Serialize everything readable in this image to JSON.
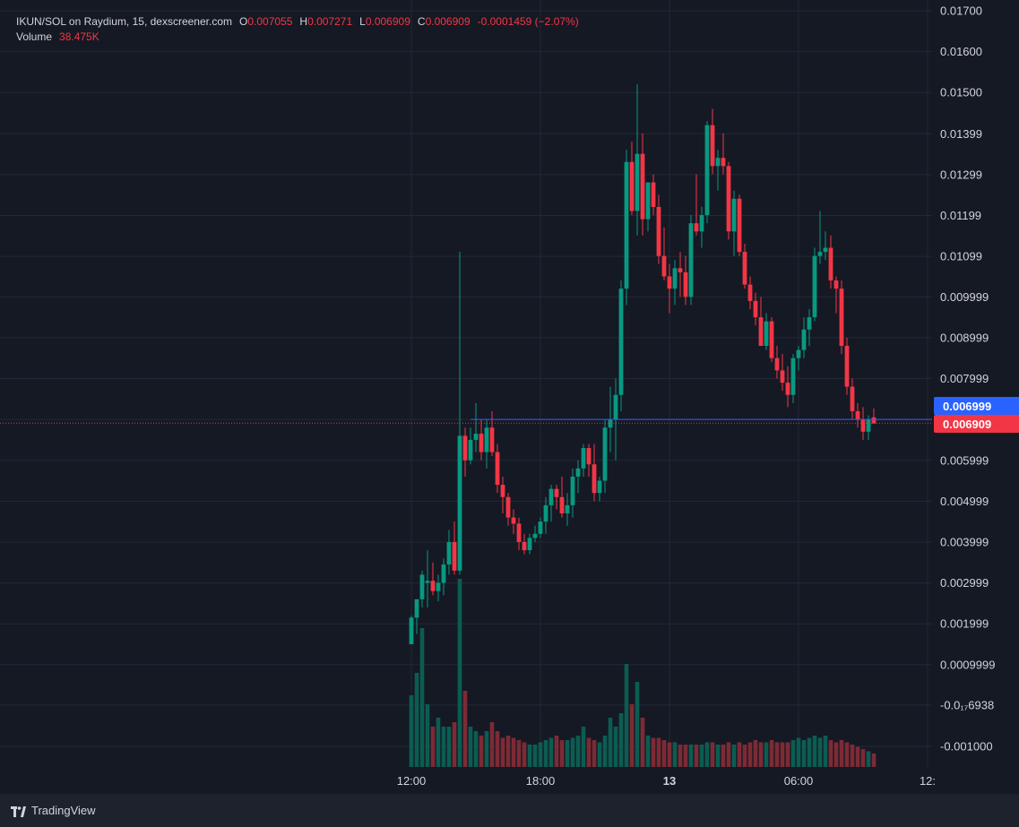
{
  "legend": {
    "symbol": "IKUN/SOL on Raydium, 15, dexscreener.com",
    "o_label": "O",
    "o_value": "0.007055",
    "h_label": "H",
    "h_value": "0.007271",
    "l_label": "L",
    "l_value": "0.006909",
    "c_label": "C",
    "c_value": "0.006909",
    "change": "-0.0001459 (−2.07%)",
    "volume_label": "Volume",
    "volume_value": "38.475K"
  },
  "price_labels": {
    "blue": "0.006999",
    "red": "0.006909"
  },
  "footer": {
    "brand": "TradingView"
  },
  "colors": {
    "background": "#151924",
    "grid": "#242836",
    "up": "#089981",
    "down": "#f23645",
    "blue_line": "#2962ff",
    "axis_text": "#d1d4dc"
  },
  "chart_data": {
    "type": "candlestick",
    "interval": "15",
    "y_ticks": [
      "0.01700",
      "0.01600",
      "0.01500",
      "0.01399",
      "0.01299",
      "0.01199",
      "0.01099",
      "0.009999",
      "0.008999",
      "0.007999",
      "0.006999",
      "0.005999",
      "0.004999",
      "0.003999",
      "0.002999",
      "0.001999",
      "0.0009999",
      "-0.0₁₇6938",
      "-0.001000"
    ],
    "y_tick_values": [
      0.017,
      0.016,
      0.015,
      0.01399,
      0.01299,
      0.01199,
      0.01099,
      0.009999,
      0.008999,
      0.007999,
      0.006999,
      0.005999,
      0.004999,
      0.003999,
      0.002999,
      0.001999,
      0.0009999,
      1e-05,
      -0.001
    ],
    "ylim": [
      -0.0015,
      0.0172
    ],
    "x_ticks": [
      "12:00",
      "18:00",
      "13",
      "06:00",
      "12:"
    ],
    "x_tick_index": [
      0,
      24,
      48,
      72,
      96
    ],
    "candles": [
      [
        0.0015,
        0.0022,
        0.0015,
        0.00215
      ],
      [
        0.00215,
        0.0026,
        0.00175,
        0.0026
      ],
      [
        0.0026,
        0.0033,
        0.0024,
        0.0032
      ],
      [
        0.003,
        0.0038,
        0.0024,
        0.00305
      ],
      [
        0.00305,
        0.0035,
        0.0027,
        0.0028
      ],
      [
        0.0028,
        0.0032,
        0.00255,
        0.003
      ],
      [
        0.003,
        0.0036,
        0.0027,
        0.00345
      ],
      [
        0.00345,
        0.0043,
        0.0032,
        0.004
      ],
      [
        0.004,
        0.0045,
        0.0032,
        0.0033
      ],
      [
        0.0033,
        0.0111,
        0.0032,
        0.0066
      ],
      [
        0.0066,
        0.0068,
        0.0056,
        0.006
      ],
      [
        0.006,
        0.0068,
        0.0059,
        0.0065
      ],
      [
        0.0065,
        0.0074,
        0.0062,
        0.00665
      ],
      [
        0.00665,
        0.007,
        0.006,
        0.0062
      ],
      [
        0.0062,
        0.007,
        0.0058,
        0.0068
      ],
      [
        0.0068,
        0.0072,
        0.0061,
        0.0062
      ],
      [
        0.0062,
        0.0064,
        0.0052,
        0.0054
      ],
      [
        0.0054,
        0.0056,
        0.0047,
        0.0051
      ],
      [
        0.0051,
        0.0052,
        0.0044,
        0.0046
      ],
      [
        0.0046,
        0.0048,
        0.0042,
        0.00445
      ],
      [
        0.00445,
        0.0046,
        0.0038,
        0.004
      ],
      [
        0.004,
        0.0042,
        0.0037,
        0.0038
      ],
      [
        0.0038,
        0.0042,
        0.0037,
        0.0041
      ],
      [
        0.0041,
        0.0044,
        0.004,
        0.0042
      ],
      [
        0.0042,
        0.0046,
        0.0041,
        0.0045
      ],
      [
        0.0045,
        0.0051,
        0.0042,
        0.0049
      ],
      [
        0.0049,
        0.0054,
        0.0045,
        0.0053
      ],
      [
        0.0053,
        0.0054,
        0.0048,
        0.0051
      ],
      [
        0.0051,
        0.0056,
        0.0046,
        0.0047
      ],
      [
        0.0047,
        0.0052,
        0.0044,
        0.0049
      ],
      [
        0.0049,
        0.0058,
        0.0046,
        0.0056
      ],
      [
        0.0056,
        0.006,
        0.0052,
        0.0058
      ],
      [
        0.0058,
        0.0064,
        0.0056,
        0.0063
      ],
      [
        0.0063,
        0.0064,
        0.0056,
        0.0059
      ],
      [
        0.0059,
        0.0064,
        0.005,
        0.0052
      ],
      [
        0.0052,
        0.0056,
        0.005,
        0.0055
      ],
      [
        0.0055,
        0.007,
        0.0052,
        0.0068
      ],
      [
        0.0068,
        0.0078,
        0.0062,
        0.007
      ],
      [
        0.007,
        0.008,
        0.006,
        0.0076
      ],
      [
        0.0076,
        0.0104,
        0.0072,
        0.0102
      ],
      [
        0.0102,
        0.0136,
        0.0098,
        0.0133
      ],
      [
        0.0133,
        0.0138,
        0.012,
        0.0121
      ],
      [
        0.0121,
        0.0152,
        0.0115,
        0.0135
      ],
      [
        0.0135,
        0.014,
        0.0115,
        0.0119
      ],
      [
        0.0119,
        0.0127,
        0.0116,
        0.0128
      ],
      [
        0.0128,
        0.013,
        0.012,
        0.0122
      ],
      [
        0.0122,
        0.0125,
        0.0108,
        0.011
      ],
      [
        0.011,
        0.0117,
        0.0104,
        0.0105
      ],
      [
        0.0105,
        0.0108,
        0.0096,
        0.0102
      ],
      [
        0.0102,
        0.0109,
        0.0098,
        0.0107
      ],
      [
        0.0107,
        0.0111,
        0.01,
        0.0106
      ],
      [
        0.0106,
        0.011,
        0.0098,
        0.01
      ],
      [
        0.01,
        0.012,
        0.0098,
        0.0118
      ],
      [
        0.0118,
        0.013,
        0.0115,
        0.0116
      ],
      [
        0.0116,
        0.0122,
        0.0112,
        0.012
      ],
      [
        0.012,
        0.0143,
        0.0118,
        0.0142
      ],
      [
        0.0142,
        0.0146,
        0.013,
        0.0132
      ],
      [
        0.0132,
        0.0136,
        0.0126,
        0.0134
      ],
      [
        0.0134,
        0.014,
        0.013,
        0.0132
      ],
      [
        0.0132,
        0.0133,
        0.0114,
        0.0116
      ],
      [
        0.0116,
        0.0126,
        0.011,
        0.0124
      ],
      [
        0.0124,
        0.0125,
        0.011,
        0.0111
      ],
      [
        0.0111,
        0.0113,
        0.0102,
        0.0103
      ],
      [
        0.0103,
        0.0105,
        0.0097,
        0.0099
      ],
      [
        0.0099,
        0.0101,
        0.0093,
        0.0095
      ],
      [
        0.0095,
        0.01,
        0.0088,
        0.0088
      ],
      [
        0.0088,
        0.0096,
        0.0087,
        0.0094
      ],
      [
        0.0094,
        0.0095,
        0.0084,
        0.0085
      ],
      [
        0.0085,
        0.0088,
        0.008,
        0.0082
      ],
      [
        0.0082,
        0.0086,
        0.0077,
        0.0079
      ],
      [
        0.0079,
        0.0083,
        0.0073,
        0.0076
      ],
      [
        0.0076,
        0.0086,
        0.0074,
        0.0085
      ],
      [
        0.0085,
        0.0088,
        0.0082,
        0.0087
      ],
      [
        0.0087,
        0.0095,
        0.0085,
        0.0092
      ],
      [
        0.0092,
        0.0097,
        0.0088,
        0.0095
      ],
      [
        0.0095,
        0.0112,
        0.0094,
        0.011
      ],
      [
        0.011,
        0.0121,
        0.0108,
        0.0111
      ],
      [
        0.0111,
        0.0116,
        0.0109,
        0.0112
      ],
      [
        0.0112,
        0.0115,
        0.0102,
        0.0104
      ],
      [
        0.0104,
        0.0105,
        0.0096,
        0.0102
      ],
      [
        0.0102,
        0.0104,
        0.0086,
        0.0088
      ],
      [
        0.0088,
        0.009,
        0.0076,
        0.0078
      ],
      [
        0.0078,
        0.008,
        0.007,
        0.0072
      ],
      [
        0.0072,
        0.0074,
        0.0068,
        0.007
      ],
      [
        0.007,
        0.0073,
        0.0065,
        0.0067
      ],
      [
        0.0067,
        0.0071,
        0.0065,
        0.007
      ],
      [
        0.00705,
        0.00727,
        0.0069,
        0.0069
      ]
    ],
    "volume": [
      1600,
      2100,
      3100,
      1400,
      900,
      1100,
      900,
      900,
      1000,
      4200,
      1700,
      900,
      800,
      700,
      800,
      1000,
      800,
      650,
      700,
      650,
      600,
      550,
      500,
      500,
      550,
      600,
      650,
      700,
      600,
      600,
      650,
      700,
      900,
      650,
      600,
      550,
      700,
      1100,
      900,
      1200,
      2300,
      1400,
      1900,
      1100,
      700,
      650,
      650,
      600,
      550,
      550,
      500,
      500,
      500,
      500,
      500,
      550,
      550,
      500,
      500,
      550,
      500,
      550,
      500,
      550,
      600,
      550,
      550,
      600,
      550,
      550,
      550,
      600,
      650,
      600,
      650,
      700,
      650,
      700,
      600,
      550,
      600,
      550,
      500,
      450,
      400,
      350,
      300
    ],
    "current_price": 0.006909,
    "blue_line_price": 0.006999
  }
}
